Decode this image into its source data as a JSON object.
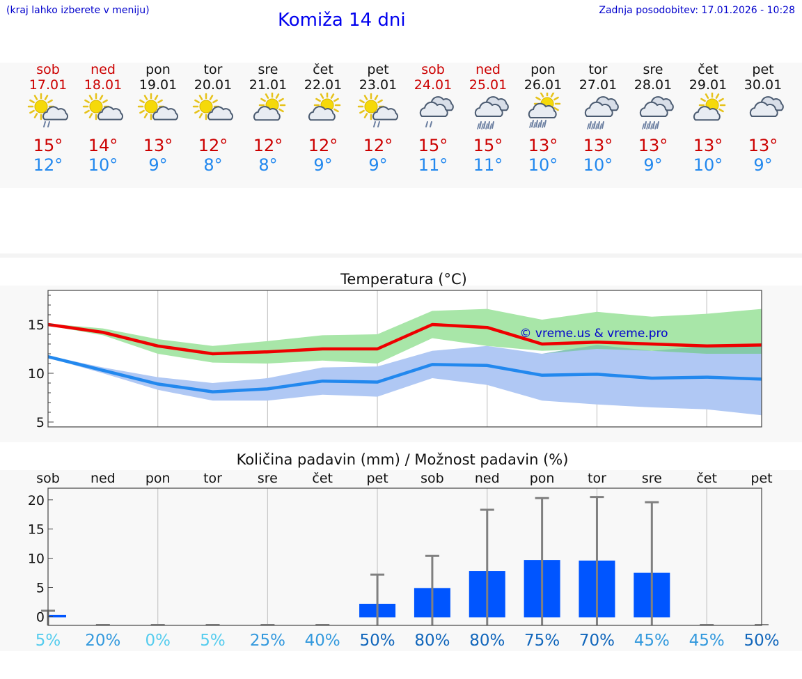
{
  "header": {
    "hint": "(kraj lahko izberete v meniju)",
    "title": "Komiža 14 dni",
    "updated": "Zadnja posodobitev: 17.01.2026 - 10:28"
  },
  "days": [
    {
      "name": "sob",
      "date": "17.01",
      "weekend": true,
      "icon": "sun-cloud-rain-icon",
      "tmax": "15°",
      "tmin": "12°"
    },
    {
      "name": "ned",
      "date": "18.01",
      "weekend": true,
      "icon": "sun-cloud-icon",
      "tmax": "14°",
      "tmin": "10°"
    },
    {
      "name": "pon",
      "date": "19.01",
      "weekend": false,
      "icon": "sun-cloud-icon",
      "tmax": "13°",
      "tmin": "9°"
    },
    {
      "name": "tor",
      "date": "20.01",
      "weekend": false,
      "icon": "sun-cloud-icon",
      "tmax": "12°",
      "tmin": "8°"
    },
    {
      "name": "sre",
      "date": "21.01",
      "weekend": false,
      "icon": "cloud-sun-icon",
      "tmax": "12°",
      "tmin": "8°"
    },
    {
      "name": "čet",
      "date": "22.01",
      "weekend": false,
      "icon": "cloud-sun-icon",
      "tmax": "12°",
      "tmin": "9°"
    },
    {
      "name": "pet",
      "date": "23.01",
      "weekend": false,
      "icon": "sun-cloud-rain-icon",
      "tmax": "12°",
      "tmin": "9°"
    },
    {
      "name": "sob",
      "date": "24.01",
      "weekend": true,
      "icon": "cloud-rain-icon",
      "tmax": "15°",
      "tmin": "11°"
    },
    {
      "name": "ned",
      "date": "25.01",
      "weekend": true,
      "icon": "cloud-heavy-rain-icon",
      "tmax": "15°",
      "tmin": "11°"
    },
    {
      "name": "pon",
      "date": "26.01",
      "weekend": false,
      "icon": "sun-cloud-heavy-rain-icon",
      "tmax": "13°",
      "tmin": "10°"
    },
    {
      "name": "tor",
      "date": "27.01",
      "weekend": false,
      "icon": "cloud-heavy-rain-icon",
      "tmax": "13°",
      "tmin": "10°"
    },
    {
      "name": "sre",
      "date": "28.01",
      "weekend": false,
      "icon": "cloud-heavy-rain-icon",
      "tmax": "13°",
      "tmin": "9°"
    },
    {
      "name": "čet",
      "date": "29.01",
      "weekend": false,
      "icon": "cloud-sun-icon",
      "tmax": "13°",
      "tmin": "10°"
    },
    {
      "name": "pet",
      "date": "30.01",
      "weekend": false,
      "icon": "cloudy-icon",
      "tmax": "13°",
      "tmin": "9°"
    }
  ],
  "colors": {
    "max_line": "#ee0000",
    "min_line": "#2288ee",
    "max_band": "#a8e6a8",
    "min_band": "#b0c8f4",
    "overlap_band": "#7ec4a8",
    "bar": "#0055ff",
    "whisker": "#808080"
  },
  "chart_data": [
    {
      "type": "line",
      "title": "Temperatura (°C)",
      "watermark": "© vreme.us & vreme.pro",
      "ylim": [
        4.5,
        18.5
      ],
      "yticks": [
        5,
        10,
        15
      ],
      "x": [
        0,
        1,
        2,
        3,
        4,
        5,
        6,
        7,
        8,
        9,
        10,
        11,
        12,
        13
      ],
      "series": [
        {
          "name": "max",
          "values": [
            15.0,
            14.2,
            12.8,
            12.0,
            12.2,
            12.5,
            12.5,
            15.0,
            14.7,
            13.0,
            13.2,
            13.0,
            12.8,
            12.9
          ],
          "band_low": [
            14.9,
            13.9,
            12.0,
            11.1,
            11.0,
            11.3,
            11.0,
            13.6,
            12.8,
            12.3,
            12.5,
            12.3,
            12.0,
            12.0
          ],
          "band_high": [
            15.1,
            14.6,
            13.5,
            12.8,
            13.3,
            13.9,
            14.0,
            16.4,
            16.6,
            15.5,
            16.3,
            15.8,
            16.1,
            16.6
          ]
        },
        {
          "name": "min",
          "values": [
            11.7,
            10.3,
            8.9,
            8.1,
            8.4,
            9.2,
            9.1,
            10.9,
            10.8,
            9.8,
            9.9,
            9.5,
            9.6,
            9.4
          ],
          "band_low": [
            11.6,
            10.0,
            8.3,
            7.2,
            7.2,
            7.8,
            7.6,
            9.5,
            8.8,
            7.2,
            6.8,
            6.5,
            6.3,
            5.7
          ],
          "band_high": [
            11.8,
            10.6,
            9.6,
            9.0,
            9.5,
            10.6,
            10.7,
            12.3,
            12.8,
            12.0,
            12.9,
            12.3,
            12.8,
            12.8
          ]
        }
      ]
    },
    {
      "type": "bar",
      "title": "Količina padavin (mm) / Možnost padavin (%)",
      "ylim": [
        -1.5,
        22
      ],
      "yticks": [
        0,
        5,
        10,
        15,
        20
      ],
      "categories": [
        "sob",
        "ned",
        "pon",
        "tor",
        "sre",
        "čet",
        "pet",
        "sob",
        "ned",
        "pon",
        "tor",
        "sre",
        "čet",
        "pet"
      ],
      "values": [
        0.3,
        0,
        0,
        0,
        0,
        0,
        2.2,
        4.9,
        7.8,
        9.7,
        9.6,
        7.5,
        0,
        0
      ],
      "whisker_high": [
        1.0,
        0,
        0,
        0,
        0,
        0,
        7.2,
        10.4,
        18.3,
        20.3,
        20.5,
        19.6,
        0,
        0
      ],
      "probability": [
        "5%",
        "20%",
        "0%",
        "5%",
        "25%",
        "40%",
        "50%",
        "80%",
        "80%",
        "75%",
        "70%",
        "45%",
        "45%",
        "50%"
      ],
      "probability_colors": [
        "#55ccee",
        "#3399dd",
        "#55ccee",
        "#55ccee",
        "#3399dd",
        "#3399dd",
        "#1166bb",
        "#1166bb",
        "#1166bb",
        "#1166bb",
        "#1166bb",
        "#3399dd",
        "#3399dd",
        "#1166bb"
      ]
    }
  ]
}
